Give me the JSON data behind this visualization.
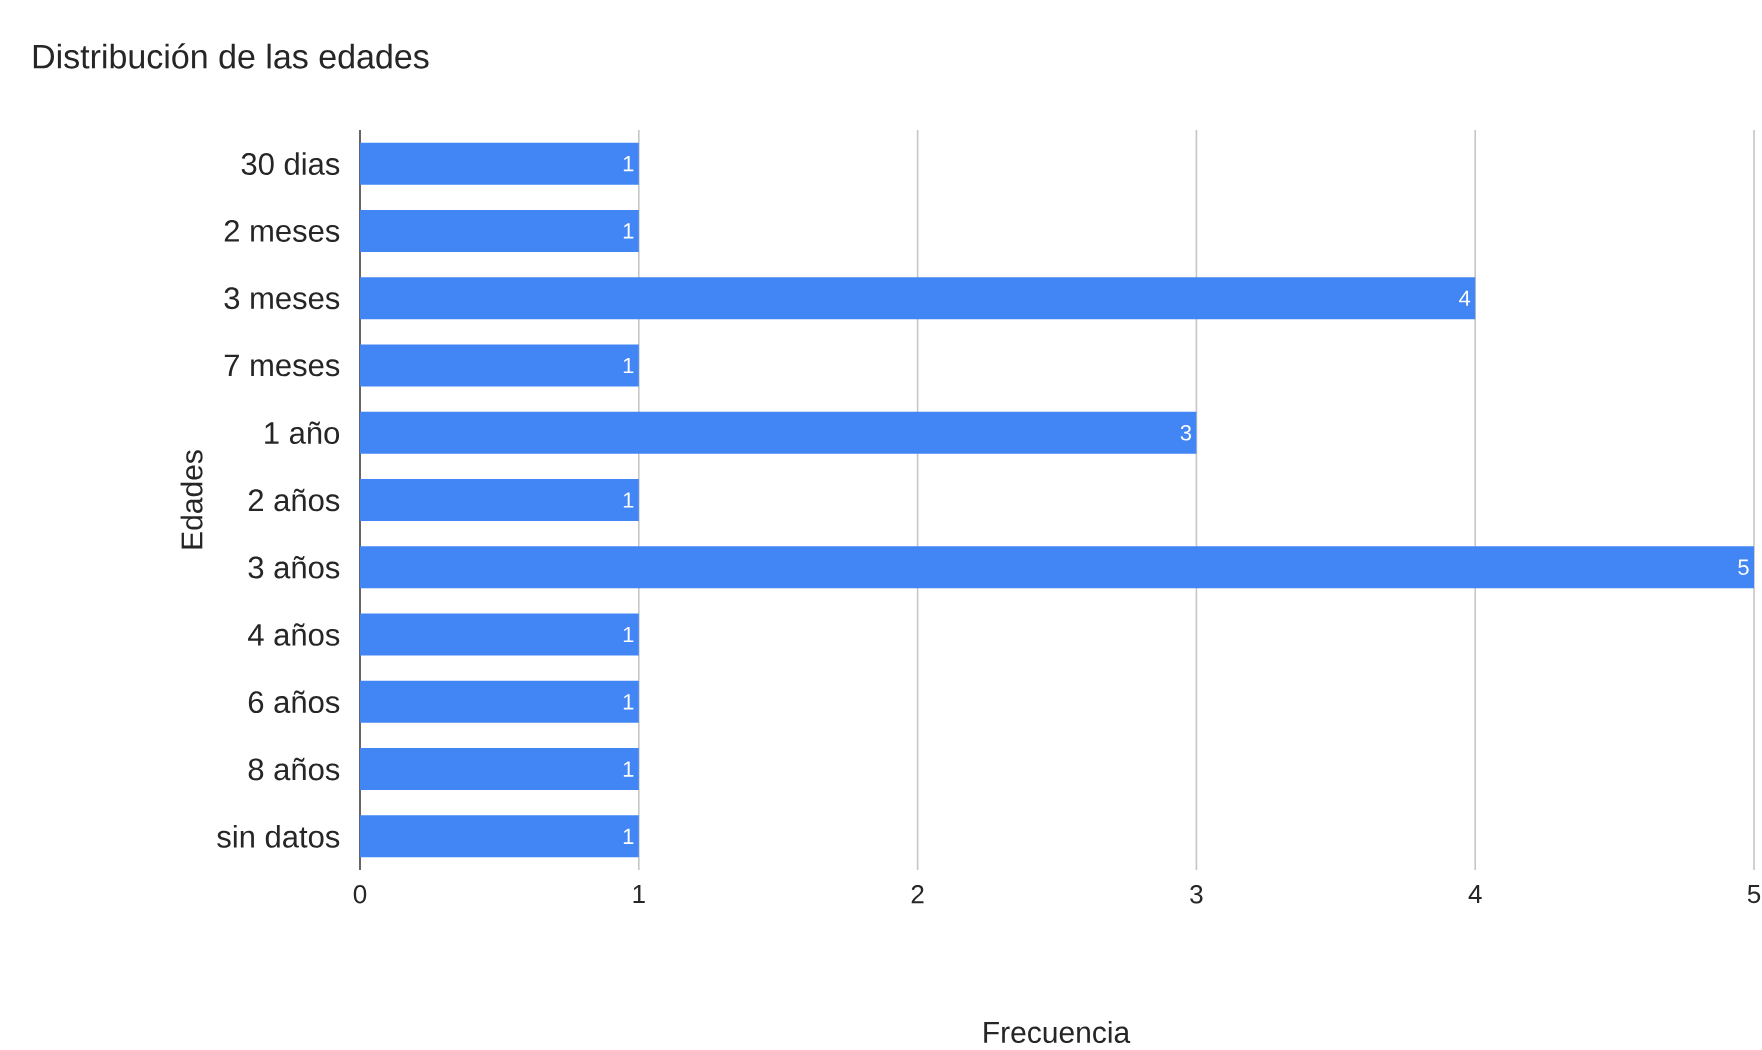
{
  "chart_data": {
    "type": "bar",
    "orientation": "horizontal",
    "title": "Distribución de las edades",
    "xlabel": "Frecuencia",
    "ylabel": "Edades",
    "categories": [
      "30 dias",
      "2 meses",
      "3 meses",
      "7 meses",
      "1 año",
      "2 años",
      "3 años",
      "4 años",
      "6 años",
      "8 años",
      "sin datos"
    ],
    "values": [
      1,
      1,
      4,
      1,
      3,
      1,
      5,
      1,
      1,
      1,
      1
    ],
    "color": "#4285f4",
    "xlim": [
      0,
      5
    ],
    "xticks": [
      0,
      1,
      2,
      3,
      4,
      5
    ],
    "grid": "x",
    "data_labels": true
  }
}
